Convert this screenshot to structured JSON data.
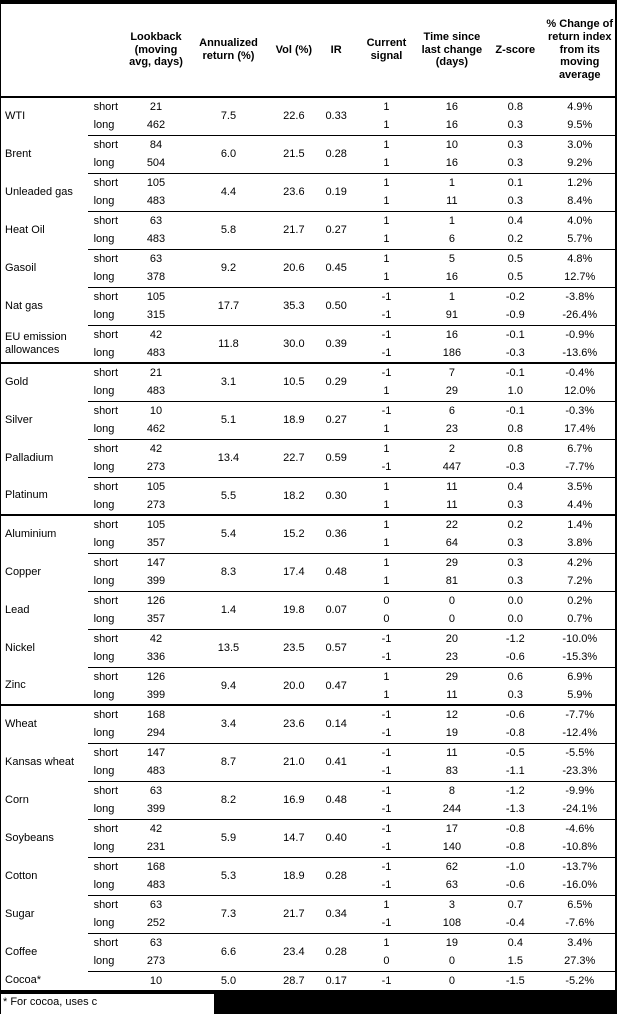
{
  "table": {
    "leg_labels": {
      "short": "short",
      "long": "long"
    },
    "headers": {
      "lookback": "Lookback\n(moving\navg, days)",
      "annualized_return": "Annualized\nreturn (%)",
      "vol": "Vol (%)",
      "ir": "IR",
      "current_signal": "Current\nsignal",
      "time_since": "Time since\nlast change\n(days)",
      "z_score": "Z-score",
      "pct_change": "% Change of\nreturn index\nfrom its\nmoving\naverage"
    },
    "commodities": [
      {
        "name": "WTI",
        "section_start": false,
        "ann": "7.5",
        "vol": "22.6",
        "ir": "0.33",
        "short": {
          "lookback": "21",
          "signal": "1",
          "time": "16",
          "z": "0.8",
          "pct": "4.9%"
        },
        "long": {
          "lookback": "462",
          "signal": "1",
          "time": "16",
          "z": "0.3",
          "pct": "9.5%"
        }
      },
      {
        "name": "Brent",
        "section_start": false,
        "ann": "6.0",
        "vol": "21.5",
        "ir": "0.28",
        "short": {
          "lookback": "84",
          "signal": "1",
          "time": "10",
          "z": "0.3",
          "pct": "3.0%"
        },
        "long": {
          "lookback": "504",
          "signal": "1",
          "time": "16",
          "z": "0.3",
          "pct": "9.2%"
        }
      },
      {
        "name": "Unleaded gas",
        "section_start": false,
        "ann": "4.4",
        "vol": "23.6",
        "ir": "0.19",
        "short": {
          "lookback": "105",
          "signal": "1",
          "time": "1",
          "z": "0.1",
          "pct": "1.2%"
        },
        "long": {
          "lookback": "483",
          "signal": "1",
          "time": "11",
          "z": "0.3",
          "pct": "8.4%"
        }
      },
      {
        "name": "Heat Oil",
        "section_start": false,
        "ann": "5.8",
        "vol": "21.7",
        "ir": "0.27",
        "short": {
          "lookback": "63",
          "signal": "1",
          "time": "1",
          "z": "0.4",
          "pct": "4.0%"
        },
        "long": {
          "lookback": "483",
          "signal": "1",
          "time": "6",
          "z": "0.2",
          "pct": "5.7%"
        }
      },
      {
        "name": "Gasoil",
        "section_start": false,
        "ann": "9.2",
        "vol": "20.6",
        "ir": "0.45",
        "short": {
          "lookback": "63",
          "signal": "1",
          "time": "5",
          "z": "0.5",
          "pct": "4.8%"
        },
        "long": {
          "lookback": "378",
          "signal": "1",
          "time": "16",
          "z": "0.5",
          "pct": "12.7%"
        }
      },
      {
        "name": "Nat gas",
        "section_start": false,
        "ann": "17.7",
        "vol": "35.3",
        "ir": "0.50",
        "short": {
          "lookback": "105",
          "signal": "-1",
          "time": "1",
          "z": "-0.2",
          "pct": "-3.8%"
        },
        "long": {
          "lookback": "315",
          "signal": "-1",
          "time": "91",
          "z": "-0.9",
          "pct": "-26.4%"
        }
      },
      {
        "name": "EU emission allowances",
        "section_start": false,
        "ann": "11.8",
        "vol": "30.0",
        "ir": "0.39",
        "short": {
          "lookback": "42",
          "signal": "-1",
          "time": "16",
          "z": "-0.1",
          "pct": "-0.9%"
        },
        "long": {
          "lookback": "483",
          "signal": "-1",
          "time": "186",
          "z": "-0.3",
          "pct": "-13.6%"
        }
      },
      {
        "name": "Gold",
        "section_start": true,
        "ann": "3.1",
        "vol": "10.5",
        "ir": "0.29",
        "short": {
          "lookback": "21",
          "signal": "-1",
          "time": "7",
          "z": "-0.1",
          "pct": "-0.4%"
        },
        "long": {
          "lookback": "483",
          "signal": "1",
          "time": "29",
          "z": "1.0",
          "pct": "12.0%"
        }
      },
      {
        "name": "Silver",
        "section_start": false,
        "ann": "5.1",
        "vol": "18.9",
        "ir": "0.27",
        "short": {
          "lookback": "10",
          "signal": "-1",
          "time": "6",
          "z": "-0.1",
          "pct": "-0.3%"
        },
        "long": {
          "lookback": "462",
          "signal": "1",
          "time": "23",
          "z": "0.8",
          "pct": "17.4%"
        }
      },
      {
        "name": "Palladium",
        "section_start": false,
        "ann": "13.4",
        "vol": "22.7",
        "ir": "0.59",
        "short": {
          "lookback": "42",
          "signal": "1",
          "time": "2",
          "z": "0.8",
          "pct": "6.7%"
        },
        "long": {
          "lookback": "273",
          "signal": "-1",
          "time": "447",
          "z": "-0.3",
          "pct": "-7.7%"
        }
      },
      {
        "name": "Platinum",
        "section_start": false,
        "ann": "5.5",
        "vol": "18.2",
        "ir": "0.30",
        "short": {
          "lookback": "105",
          "signal": "1",
          "time": "11",
          "z": "0.4",
          "pct": "3.5%"
        },
        "long": {
          "lookback": "273",
          "signal": "1",
          "time": "11",
          "z": "0.3",
          "pct": "4.4%"
        }
      },
      {
        "name": "Aluminium",
        "section_start": true,
        "ann": "5.4",
        "vol": "15.2",
        "ir": "0.36",
        "short": {
          "lookback": "105",
          "signal": "1",
          "time": "22",
          "z": "0.2",
          "pct": "1.4%"
        },
        "long": {
          "lookback": "357",
          "signal": "1",
          "time": "64",
          "z": "0.3",
          "pct": "3.8%"
        }
      },
      {
        "name": "Copper",
        "section_start": false,
        "ann": "8.3",
        "vol": "17.4",
        "ir": "0.48",
        "short": {
          "lookback": "147",
          "signal": "1",
          "time": "29",
          "z": "0.3",
          "pct": "4.2%"
        },
        "long": {
          "lookback": "399",
          "signal": "1",
          "time": "81",
          "z": "0.3",
          "pct": "7.2%"
        }
      },
      {
        "name": "Lead",
        "section_start": false,
        "ann": "1.4",
        "vol": "19.8",
        "ir": "0.07",
        "short": {
          "lookback": "126",
          "signal": "0",
          "time": "0",
          "z": "0.0",
          "pct": "0.2%"
        },
        "long": {
          "lookback": "357",
          "signal": "0",
          "time": "0",
          "z": "0.0",
          "pct": "0.7%"
        }
      },
      {
        "name": "Nickel",
        "section_start": false,
        "ann": "13.5",
        "vol": "23.5",
        "ir": "0.57",
        "short": {
          "lookback": "42",
          "signal": "-1",
          "time": "20",
          "z": "-1.2",
          "pct": "-10.0%"
        },
        "long": {
          "lookback": "336",
          "signal": "-1",
          "time": "23",
          "z": "-0.6",
          "pct": "-15.3%"
        }
      },
      {
        "name": "Zinc",
        "section_start": false,
        "ann": "9.4",
        "vol": "20.0",
        "ir": "0.47",
        "short": {
          "lookback": "126",
          "signal": "1",
          "time": "29",
          "z": "0.6",
          "pct": "6.9%"
        },
        "long": {
          "lookback": "399",
          "signal": "1",
          "time": "11",
          "z": "0.3",
          "pct": "5.9%"
        }
      },
      {
        "name": "Wheat",
        "section_start": true,
        "ann": "3.4",
        "vol": "23.6",
        "ir": "0.14",
        "short": {
          "lookback": "168",
          "signal": "-1",
          "time": "12",
          "z": "-0.6",
          "pct": "-7.7%"
        },
        "long": {
          "lookback": "294",
          "signal": "-1",
          "time": "19",
          "z": "-0.8",
          "pct": "-12.4%"
        }
      },
      {
        "name": "Kansas wheat",
        "section_start": false,
        "ann": "8.7",
        "vol": "21.0",
        "ir": "0.41",
        "short": {
          "lookback": "147",
          "signal": "-1",
          "time": "11",
          "z": "-0.5",
          "pct": "-5.5%"
        },
        "long": {
          "lookback": "483",
          "signal": "-1",
          "time": "83",
          "z": "-1.1",
          "pct": "-23.3%"
        }
      },
      {
        "name": "Corn",
        "section_start": false,
        "ann": "8.2",
        "vol": "16.9",
        "ir": "0.48",
        "short": {
          "lookback": "63",
          "signal": "-1",
          "time": "8",
          "z": "-1.2",
          "pct": "-9.9%"
        },
        "long": {
          "lookback": "399",
          "signal": "-1",
          "time": "244",
          "z": "-1.3",
          "pct": "-24.1%"
        }
      },
      {
        "name": "Soybeans",
        "section_start": false,
        "ann": "5.9",
        "vol": "14.7",
        "ir": "0.40",
        "short": {
          "lookback": "42",
          "signal": "-1",
          "time": "17",
          "z": "-0.8",
          "pct": "-4.6%"
        },
        "long": {
          "lookback": "231",
          "signal": "-1",
          "time": "140",
          "z": "-0.8",
          "pct": "-10.8%"
        }
      },
      {
        "name": "Cotton",
        "section_start": false,
        "ann": "5.3",
        "vol": "18.9",
        "ir": "0.28",
        "short": {
          "lookback": "168",
          "signal": "-1",
          "time": "62",
          "z": "-1.0",
          "pct": "-13.7%"
        },
        "long": {
          "lookback": "483",
          "signal": "-1",
          "time": "63",
          "z": "-0.6",
          "pct": "-16.0%"
        }
      },
      {
        "name": "Sugar",
        "section_start": false,
        "ann": "7.3",
        "vol": "21.7",
        "ir": "0.34",
        "short": {
          "lookback": "63",
          "signal": "1",
          "time": "3",
          "z": "0.7",
          "pct": "6.5%"
        },
        "long": {
          "lookback": "252",
          "signal": "-1",
          "time": "108",
          "z": "-0.4",
          "pct": "-7.6%"
        }
      },
      {
        "name": "Coffee",
        "section_start": false,
        "ann": "6.6",
        "vol": "23.4",
        "ir": "0.28",
        "short": {
          "lookback": "63",
          "signal": "1",
          "time": "19",
          "z": "0.4",
          "pct": "3.4%"
        },
        "long": {
          "lookback": "273",
          "signal": "0",
          "time": "0",
          "z": "1.5",
          "pct": "27.3%"
        }
      },
      {
        "name": "Cocoa*",
        "section_start": false,
        "single": true,
        "ann": "5.0",
        "vol": "28.7",
        "ir": "0.17",
        "values": {
          "lookback": "10",
          "signal": "-1",
          "time": "0",
          "z": "-1.5",
          "pct": "-5.2%"
        }
      }
    ]
  },
  "footnote": {
    "visible_text": "* For cocoa, uses c"
  },
  "colors": {
    "text": "#000000",
    "background": "#ffffff",
    "rule": "#000000",
    "redaction": "#000000"
  }
}
